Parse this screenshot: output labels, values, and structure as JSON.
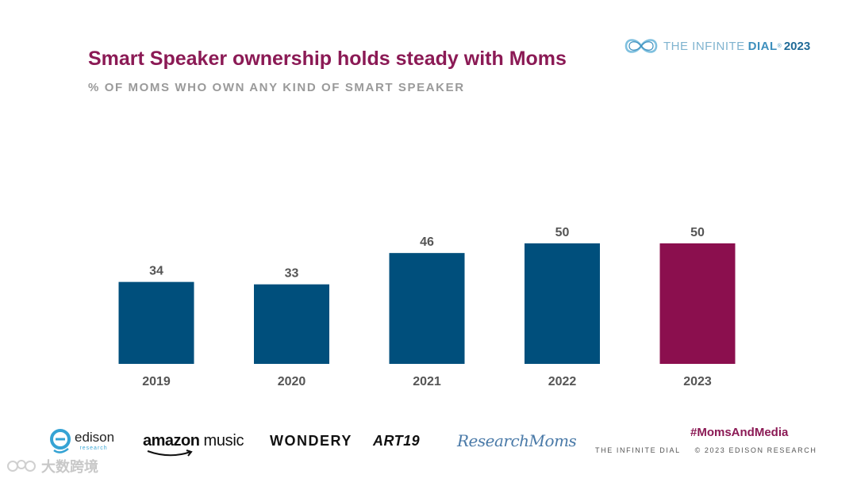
{
  "header": {
    "title": "Smart Speaker ownership holds steady with Moms",
    "subtitle": "% OF MOMS WHO OWN ANY KIND OF SMART SPEAKER"
  },
  "brand": {
    "prefix": "THE INFINITE",
    "dial": "DIAL",
    "reg": "®",
    "year": "2023"
  },
  "chart_data": {
    "type": "bar",
    "title": "Smart Speaker ownership holds steady with Moms",
    "subtitle": "% OF MOMS WHO OWN ANY KIND OF SMART SPEAKER",
    "categories": [
      "2019",
      "2020",
      "2021",
      "2022",
      "2023"
    ],
    "values": [
      34,
      33,
      46,
      50,
      50
    ],
    "labels": [
      "34",
      "33",
      "46",
      "50",
      "50"
    ],
    "ylim": [
      0,
      100
    ],
    "grid": false,
    "xlabel": "",
    "ylabel": "",
    "colors": [
      "#004f7c",
      "#004f7c",
      "#004f7c",
      "#004f7c",
      "#8b0f4e"
    ]
  },
  "footer": {
    "hashtag": "#MomsAndMedia",
    "note_left": "THE INFINITE DIAL",
    "note_right": "© 2023 EDISON RESEARCH"
  },
  "sponsors": {
    "edison": "edison",
    "edison_sub": "research",
    "amazon_a": "amazon",
    "amazon_b": "music",
    "wondery": "WONDERY",
    "art19": "ART19",
    "research_moms": "ResearchMoms"
  },
  "watermark": {
    "text": "大数跨境"
  },
  "colors": {
    "accent": "#8b1a55",
    "bar": "#004f7c",
    "highlight": "#8b0f4e"
  }
}
